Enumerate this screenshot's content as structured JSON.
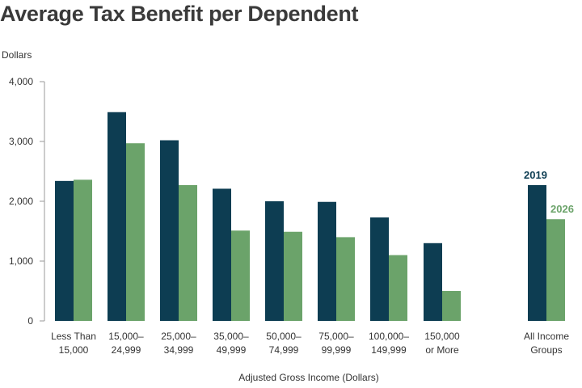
{
  "chart_data": {
    "type": "bar",
    "title": "Average Tax Benefit per Dependent",
    "ylabel": "Dollars",
    "xlabel": "Adjusted Gross Income (Dollars)",
    "ylim": [
      0,
      4000
    ],
    "yticks": [
      "0",
      "1,000",
      "2,000",
      "3,000",
      "4,000"
    ],
    "categories": [
      [
        "Less Than",
        "15,000"
      ],
      [
        "15,000–",
        "24,999"
      ],
      [
        "25,000–",
        "34,999"
      ],
      [
        "35,000–",
        "49,999"
      ],
      [
        "50,000–",
        "74,999"
      ],
      [
        "75,000–",
        "99,999"
      ],
      [
        "100,000–",
        "149,999"
      ],
      [
        "150,000",
        "or More"
      ],
      [
        "All Income",
        "Groups"
      ]
    ],
    "series": [
      {
        "name": "2019",
        "color": "#0d3d52",
        "values": [
          2340,
          3490,
          3020,
          2210,
          2000,
          1990,
          1730,
          1300,
          2270
        ]
      },
      {
        "name": "2026",
        "color": "#6ba36a",
        "values": [
          2360,
          2970,
          2270,
          1510,
          1490,
          1400,
          1100,
          500,
          1700
        ]
      }
    ],
    "grid": false,
    "legend": "series names labelled directly above the All Income Groups bars"
  }
}
